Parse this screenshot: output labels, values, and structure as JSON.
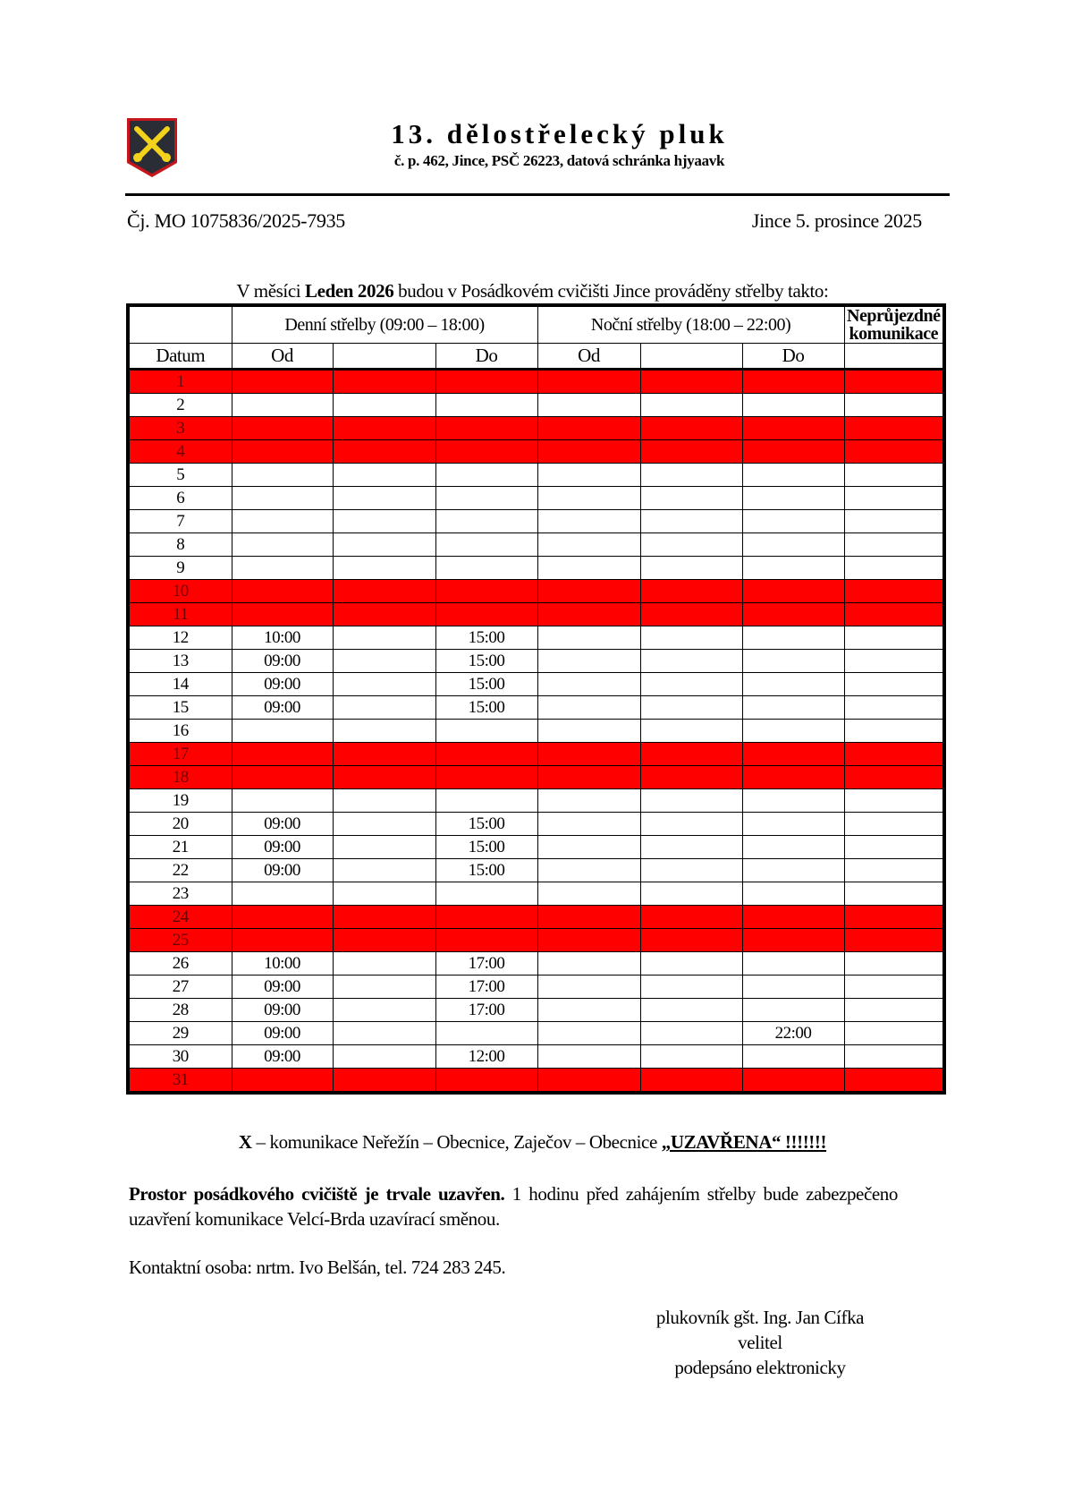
{
  "header": {
    "title": "13. dělostřelecký pluk",
    "address": "č. p. 462, Jince, PSČ 26223, datová  schránka hjyaavk",
    "logo": "crossed-cannons-emblem",
    "reference": "Čj. MO  1075836/2025-7935",
    "place_date": "Jince  5. prosince  2025"
  },
  "intro": {
    "prefix": "V měsíci ",
    "month": "Leden 2026",
    "suffix": " budou v Posádkovém cvičišti  Jince  prováděny  střelby  takto:"
  },
  "table": {
    "group_headers": {
      "day": "Denní střelby (09:00  – 18:00)",
      "night": "Noční střelby (18:00  – 22:00)",
      "roads": "Neprůjezdné komunikace"
    },
    "sub_headers": [
      "Datum",
      "Od",
      "",
      "Do",
      "Od",
      "",
      "Do",
      ""
    ],
    "closed_color": "#ff0000",
    "rows": [
      {
        "d": "1",
        "red": true,
        "c": [
          "",
          "",
          "",
          "",
          "",
          "",
          ""
        ]
      },
      {
        "d": "2",
        "red": false,
        "c": [
          "",
          "",
          "",
          "",
          "",
          "",
          ""
        ]
      },
      {
        "d": "3",
        "red": true,
        "c": [
          "",
          "",
          "",
          "",
          "",
          "",
          ""
        ]
      },
      {
        "d": "4",
        "red": true,
        "c": [
          "",
          "",
          "",
          "",
          "",
          "",
          ""
        ]
      },
      {
        "d": "5",
        "red": false,
        "c": [
          "",
          "",
          "",
          "",
          "",
          "",
          ""
        ]
      },
      {
        "d": "6",
        "red": false,
        "c": [
          "",
          "",
          "",
          "",
          "",
          "",
          ""
        ]
      },
      {
        "d": "7",
        "red": false,
        "c": [
          "",
          "",
          "",
          "",
          "",
          "",
          ""
        ]
      },
      {
        "d": "8",
        "red": false,
        "c": [
          "",
          "",
          "",
          "",
          "",
          "",
          ""
        ]
      },
      {
        "d": "9",
        "red": false,
        "c": [
          "",
          "",
          "",
          "",
          "",
          "",
          ""
        ]
      },
      {
        "d": "10",
        "red": true,
        "c": [
          "",
          "",
          "",
          "",
          "",
          "",
          ""
        ]
      },
      {
        "d": "11",
        "red": true,
        "c": [
          "",
          "",
          "",
          "",
          "",
          "",
          ""
        ]
      },
      {
        "d": "12",
        "red": false,
        "c": [
          "10:00",
          "",
          "15:00",
          "",
          "",
          "",
          ""
        ]
      },
      {
        "d": "13",
        "red": false,
        "c": [
          "09:00",
          "",
          "15:00",
          "",
          "",
          "",
          ""
        ]
      },
      {
        "d": "14",
        "red": false,
        "c": [
          "09:00",
          "",
          "15:00",
          "",
          "",
          "",
          ""
        ]
      },
      {
        "d": "15",
        "red": false,
        "c": [
          "09:00",
          "",
          "15:00",
          "",
          "",
          "",
          ""
        ]
      },
      {
        "d": "16",
        "red": false,
        "c": [
          "",
          "",
          "",
          "",
          "",
          "",
          ""
        ]
      },
      {
        "d": "17",
        "red": true,
        "c": [
          "",
          "",
          "",
          "",
          "",
          "",
          ""
        ]
      },
      {
        "d": "18",
        "red": true,
        "c": [
          "",
          "",
          "",
          "",
          "",
          "",
          ""
        ]
      },
      {
        "d": "19",
        "red": false,
        "c": [
          "",
          "",
          "",
          "",
          "",
          "",
          ""
        ]
      },
      {
        "d": "20",
        "red": false,
        "c": [
          "09:00",
          "",
          "15:00",
          "",
          "",
          "",
          ""
        ]
      },
      {
        "d": "21",
        "red": false,
        "c": [
          "09:00",
          "",
          "15:00",
          "",
          "",
          "",
          ""
        ]
      },
      {
        "d": "22",
        "red": false,
        "c": [
          "09:00",
          "",
          "15:00",
          "",
          "",
          "",
          ""
        ]
      },
      {
        "d": "23",
        "red": false,
        "c": [
          "",
          "",
          "",
          "",
          "",
          "",
          ""
        ]
      },
      {
        "d": "24",
        "red": true,
        "c": [
          "",
          "",
          "",
          "",
          "",
          "",
          ""
        ]
      },
      {
        "d": "25",
        "red": true,
        "c": [
          "",
          "",
          "",
          "",
          "",
          "",
          ""
        ]
      },
      {
        "d": "26",
        "red": false,
        "c": [
          "10:00",
          "",
          "17:00",
          "",
          "",
          "",
          ""
        ]
      },
      {
        "d": "27",
        "red": false,
        "c": [
          "09:00",
          "",
          "17:00",
          "",
          "",
          "",
          ""
        ]
      },
      {
        "d": "28",
        "red": false,
        "c": [
          "09:00",
          "",
          "17:00",
          "",
          "",
          "",
          ""
        ]
      },
      {
        "d": "29",
        "red": false,
        "c": [
          "09:00",
          "",
          "",
          "",
          "",
          "22:00",
          ""
        ]
      },
      {
        "d": "30",
        "red": false,
        "c": [
          "09:00",
          "",
          "12:00",
          "",
          "",
          "",
          ""
        ]
      },
      {
        "d": "31",
        "red": true,
        "c": [
          "",
          "",
          "",
          "",
          "",
          "",
          ""
        ]
      }
    ]
  },
  "legend": {
    "mark": "X",
    "text": " – komunikace  Neřežín  – Obecnice,  Zaječov – Obecnice  ",
    "status": "„UZAVŘENA“  !!!!!!!"
  },
  "notice": {
    "bold": "Prostor posádkového cvičiště je trvale uzavřen.",
    "text": " 1 hodinu před zahájením  střelby bude zabezpečeno  uzavření  komunikace  Velcí-Brda  uzavírací  směnou."
  },
  "contact": "Kontaktní  osoba: nrtm.  Ivo Belšán,  tel.  724 283 245.",
  "signature": {
    "name": "plukovník  gšt. Ing. Jan Cífka",
    "role": "velitel",
    "note": "podepsáno  elektronicky"
  }
}
